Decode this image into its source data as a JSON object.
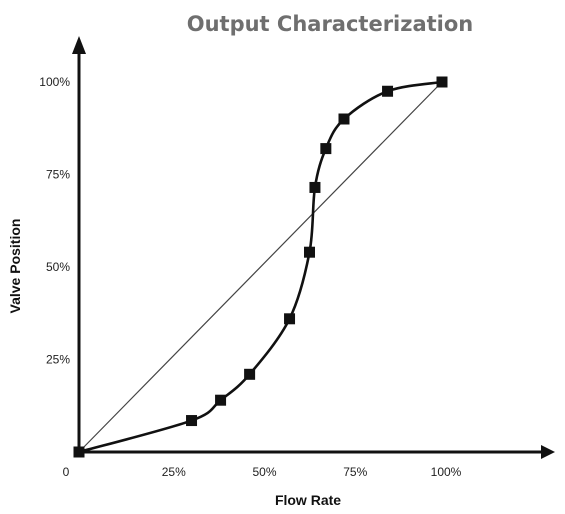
{
  "chart_data": {
    "type": "line",
    "title": "Output Characterization",
    "xlabel": "Flow Rate",
    "ylabel": "Valve Position",
    "xlim": [
      0,
      100
    ],
    "ylim": [
      0,
      100
    ],
    "x_ticks": [
      {
        "value": 0,
        "label": "0"
      },
      {
        "value": 25,
        "label": "25%"
      },
      {
        "value": 50,
        "label": "50%"
      },
      {
        "value": 75,
        "label": "75%"
      },
      {
        "value": 100,
        "label": "100%"
      }
    ],
    "y_ticks": [
      {
        "value": 25,
        "label": "25%"
      },
      {
        "value": 50,
        "label": "50%"
      },
      {
        "value": 75,
        "label": "75%"
      },
      {
        "value": 100,
        "label": "100%"
      }
    ],
    "grid": false,
    "legend": "none",
    "series": [
      {
        "style": "thick curve with square markers",
        "color": "#111111",
        "points": [
          {
            "x": 0,
            "y": 0
          },
          {
            "x": 31,
            "y": 8.5
          },
          {
            "x": 39,
            "y": 14
          },
          {
            "x": 47,
            "y": 21
          },
          {
            "x": 58,
            "y": 36
          },
          {
            "x": 63.5,
            "y": 54
          },
          {
            "x": 65,
            "y": 71.5
          },
          {
            "x": 68,
            "y": 82
          },
          {
            "x": 73,
            "y": 90
          },
          {
            "x": 85,
            "y": 97.5
          },
          {
            "x": 100,
            "y": 100
          }
        ]
      },
      {
        "style": "thin straight reference line",
        "color": "#444444",
        "points": [
          {
            "x": 0,
            "y": 0
          },
          {
            "x": 100,
            "y": 100
          }
        ]
      }
    ]
  }
}
